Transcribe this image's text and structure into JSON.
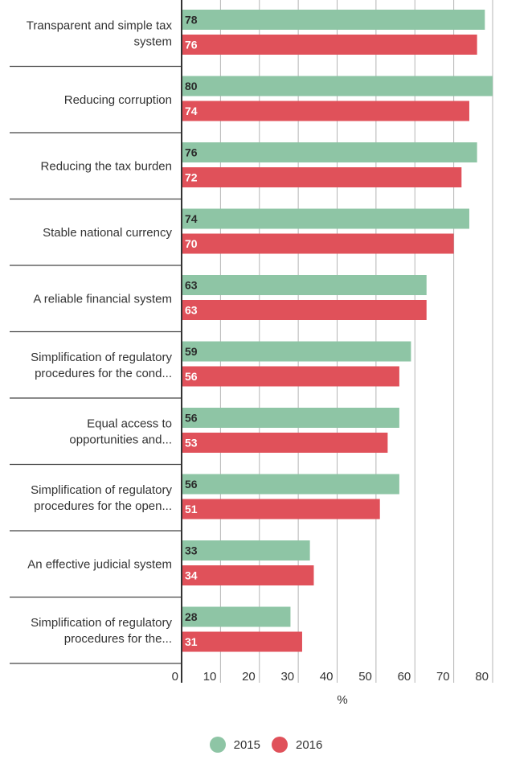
{
  "chart_data": {
    "type": "bar",
    "orientation": "horizontal",
    "categories": [
      [
        "Transparent and simple tax",
        "system"
      ],
      [
        "Reducing corruption"
      ],
      [
        "Reducing the tax burden"
      ],
      [
        "Stable national currency"
      ],
      [
        "A reliable financial system"
      ],
      [
        "Simplification of regulatory",
        "procedures for the cond..."
      ],
      [
        "Equal access to",
        "opportunities and..."
      ],
      [
        "Simplification of regulatory",
        "procedures for the open..."
      ],
      [
        "An effective judicial system"
      ],
      [
        "Simplification of regulatory",
        "procedures for the..."
      ]
    ],
    "series": [
      {
        "name": "2015",
        "color": "#8ec5a5",
        "values": [
          78,
          80,
          76,
          74,
          63,
          59,
          56,
          56,
          33,
          28
        ]
      },
      {
        "name": "2016",
        "color": "#e0515a",
        "values": [
          76,
          74,
          72,
          70,
          63,
          56,
          53,
          51,
          34,
          31
        ]
      }
    ],
    "x_ticks": [
      0,
      10,
      20,
      30,
      40,
      50,
      60,
      70,
      80
    ],
    "xlim": [
      0,
      80
    ],
    "xlabel": "%",
    "grid": true,
    "legend_position": "bottom-center"
  }
}
